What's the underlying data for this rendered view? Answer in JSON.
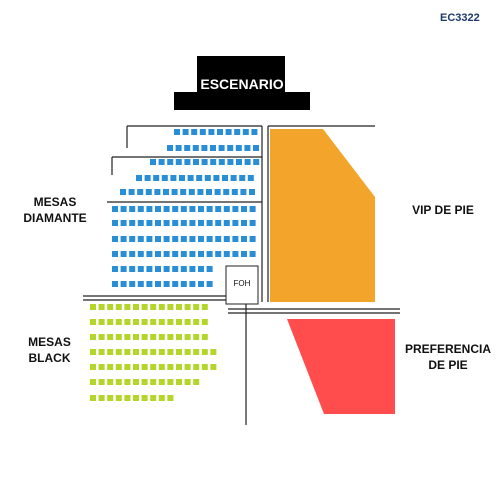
{
  "code": "EC3322",
  "stage": {
    "label": "ESCENARIO",
    "color": "#000000"
  },
  "foh": {
    "label": "FOH"
  },
  "sections": {
    "mesas_diamante": {
      "line1": "MESAS",
      "line2": "DIAMANTE",
      "color": "#2a8ed6"
    },
    "mesas_black": {
      "line1": "MESAS",
      "line2": "BLACK",
      "color": "#b4d62a"
    },
    "vip": {
      "label": "VIP DE PIE",
      "color": "#f2a52a"
    },
    "preferencia": {
      "line1": "PREFERENCIA",
      "line2": "DE PIE",
      "color": "#ff4c4c"
    }
  }
}
